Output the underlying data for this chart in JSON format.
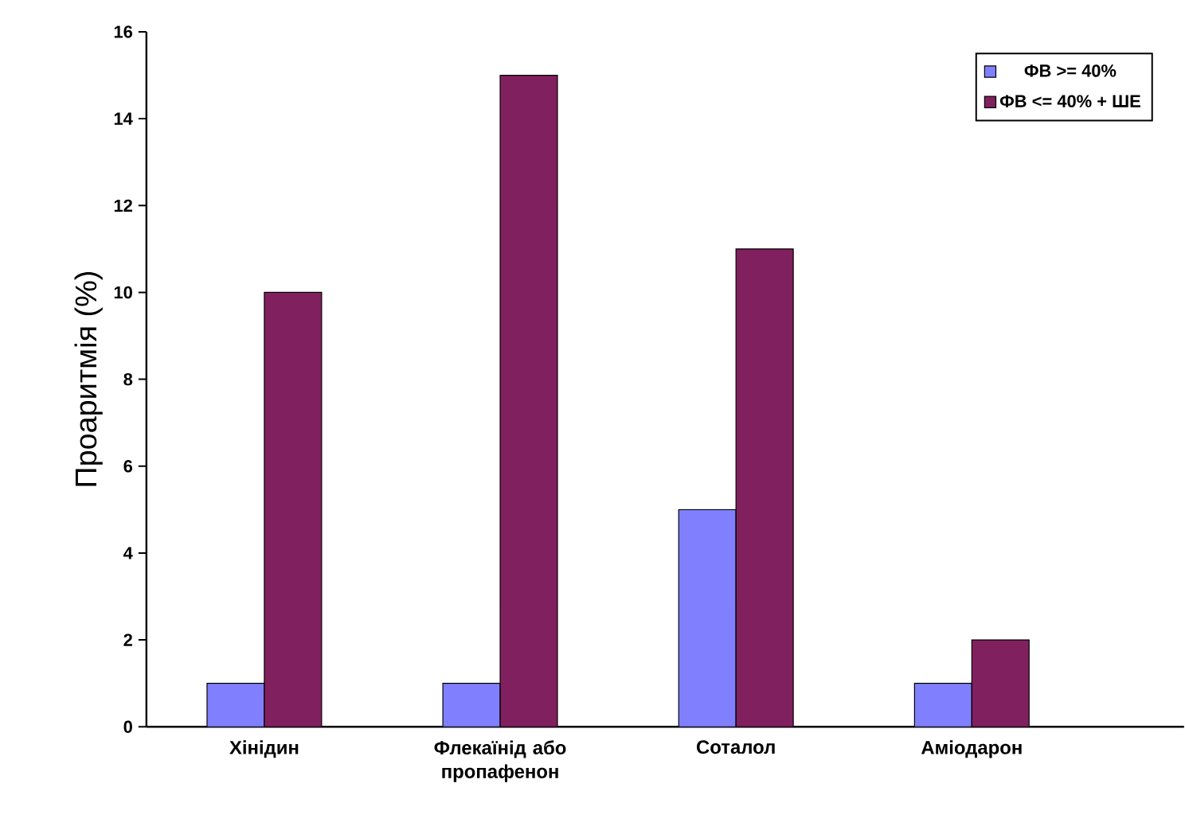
{
  "chart_data": {
    "type": "bar",
    "ylabel": "Проаритмія (%)",
    "categories": [
      "Хінідин",
      "Флекаїнід або пропафенон",
      "Соталол",
      "Аміодарон"
    ],
    "series": [
      {
        "name": "ФВ >= 40%",
        "color": "#8080ff",
        "values": [
          1,
          1,
          5,
          1
        ]
      },
      {
        "name": "ФВ <= 40% + ШЕ",
        "color": "#80205f",
        "values": [
          10,
          15,
          11,
          2
        ]
      }
    ],
    "ylim": [
      0,
      16
    ],
    "yticks": [
      0,
      2,
      4,
      6,
      8,
      10,
      12,
      14,
      16
    ],
    "grid": false,
    "legend": "top right"
  }
}
